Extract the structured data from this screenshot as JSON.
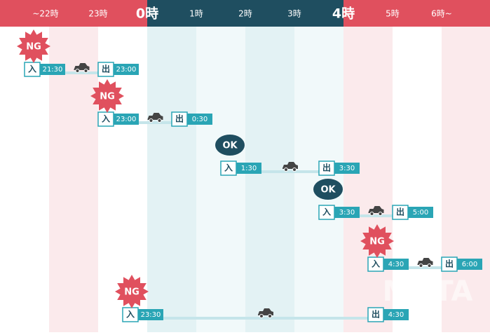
{
  "header": {
    "hours": [
      {
        "label": "~22時",
        "major": false
      },
      {
        "label": "23時",
        "major": false
      },
      {
        "label": "0時",
        "major": true
      },
      {
        "label": "1時",
        "major": false
      },
      {
        "label": "2時",
        "major": false
      },
      {
        "label": "3時",
        "major": false
      },
      {
        "label": "4時",
        "major": true
      },
      {
        "label": "5時",
        "major": false
      },
      {
        "label": "6時~",
        "major": false
      }
    ]
  },
  "in_label": "入",
  "out_label": "出",
  "rows": [
    {
      "status": "NG",
      "in": "21:30",
      "out": "23:00"
    },
    {
      "status": "NG",
      "in": "23:00",
      "out": "0:30"
    },
    {
      "status": "OK",
      "in": "1:30",
      "out": "3:30"
    },
    {
      "status": "OK",
      "in": "3:30",
      "out": "5:00"
    },
    {
      "status": "NG",
      "in": "4:30",
      "out": "6:00"
    },
    {
      "status": "NG",
      "in": "23:30",
      "out": "4:30"
    }
  ],
  "watermark": "MOTA"
}
